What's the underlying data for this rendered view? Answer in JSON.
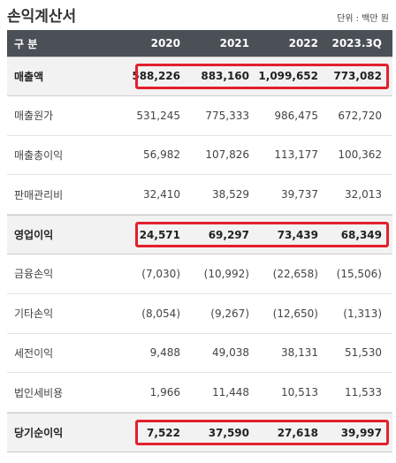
{
  "header": {
    "title": "손익계산서",
    "unit": "단위 : 백만 원"
  },
  "table": {
    "columns": [
      "구 분",
      "2020",
      "2021",
      "2022",
      "2023.3Q"
    ],
    "rows": [
      {
        "label": "매출액",
        "cells": [
          "588,226",
          "883,160",
          "1,099,652",
          "773,082"
        ],
        "highlight": true
      },
      {
        "label": "매출원가",
        "cells": [
          "531,245",
          "775,333",
          "986,475",
          "672,720"
        ],
        "highlight": false
      },
      {
        "label": "매출총이익",
        "cells": [
          "56,982",
          "107,826",
          "113,177",
          "100,362"
        ],
        "highlight": false
      },
      {
        "label": "판매관리비",
        "cells": [
          "32,410",
          "38,529",
          "39,737",
          "32,013"
        ],
        "highlight": false
      },
      {
        "label": "영업이익",
        "cells": [
          "24,571",
          "69,297",
          "73,439",
          "68,349"
        ],
        "highlight": true
      },
      {
        "label": "금융손익",
        "cells": [
          "(7,030)",
          "(10,992)",
          "(22,658)",
          "(15,506)"
        ],
        "highlight": false
      },
      {
        "label": "기타손익",
        "cells": [
          "(8,054)",
          "(9,267)",
          "(12,650)",
          "(1,313)"
        ],
        "highlight": false
      },
      {
        "label": "세전이익",
        "cells": [
          "9,488",
          "49,038",
          "38,131",
          "51,530"
        ],
        "highlight": false
      },
      {
        "label": "법인세비용",
        "cells": [
          "1,966",
          "11,448",
          "10,513",
          "11,533"
        ],
        "highlight": false
      },
      {
        "label": "당기순이익",
        "cells": [
          "7,522",
          "37,590",
          "27,618",
          "39,997"
        ],
        "highlight": true
      }
    ]
  }
}
